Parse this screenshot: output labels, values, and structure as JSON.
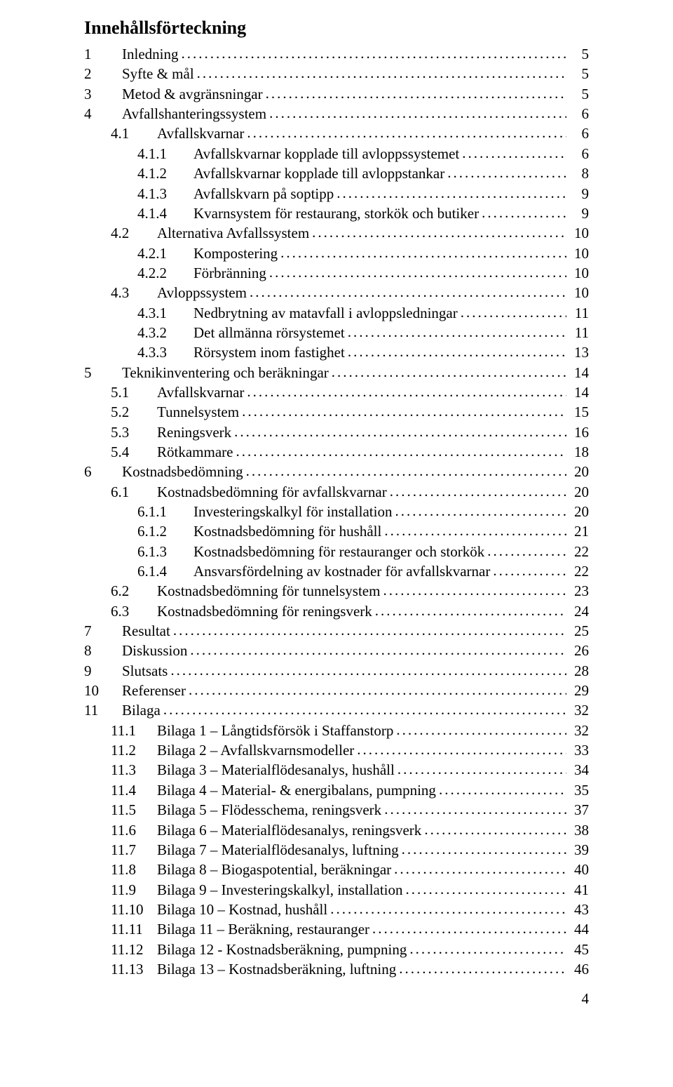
{
  "text_color": "#000000",
  "background_color": "#ffffff",
  "font_family": "Times New Roman",
  "title": "Innehållsförteckning",
  "page_number": "4",
  "entries": [
    {
      "level": 0,
      "num": "1",
      "label": "Inledning",
      "page": "5"
    },
    {
      "level": 0,
      "num": "2",
      "label": "Syfte & mål",
      "page": "5"
    },
    {
      "level": 0,
      "num": "3",
      "label": "Metod & avgränsningar",
      "page": "5"
    },
    {
      "level": 0,
      "num": "4",
      "label": "Avfallshanteringssystem",
      "page": "6"
    },
    {
      "level": 1,
      "num": "4.1",
      "label": "Avfallskvarnar",
      "page": "6"
    },
    {
      "level": 2,
      "num": "4.1.1",
      "label": "Avfallskvarnar kopplade till avloppssystemet",
      "page": "6"
    },
    {
      "level": 2,
      "num": "4.1.2",
      "label": "Avfallskvarnar kopplade till avloppstankar",
      "page": "8"
    },
    {
      "level": 2,
      "num": "4.1.3",
      "label": "Avfallskvarn på soptipp",
      "page": "9"
    },
    {
      "level": 2,
      "num": "4.1.4",
      "label": "Kvarnsystem för restaurang, storkök och butiker",
      "page": "9"
    },
    {
      "level": 1,
      "num": "4.2",
      "label": "Alternativa Avfallssystem",
      "page": "10"
    },
    {
      "level": 2,
      "num": "4.2.1",
      "label": "Kompostering",
      "page": "10"
    },
    {
      "level": 2,
      "num": "4.2.2",
      "label": "Förbränning",
      "page": "10"
    },
    {
      "level": 1,
      "num": "4.3",
      "label": "Avloppssystem",
      "page": "10"
    },
    {
      "level": 2,
      "num": "4.3.1",
      "label": "Nedbrytning av matavfall i avloppsledningar",
      "page": "11"
    },
    {
      "level": 2,
      "num": "4.3.2",
      "label": "Det allmänna rörsystemet",
      "page": "11"
    },
    {
      "level": 2,
      "num": "4.3.3",
      "label": "Rörsystem inom fastighet",
      "page": "13"
    },
    {
      "level": 0,
      "num": "5",
      "label": "Teknikinventering och beräkningar",
      "page": "14"
    },
    {
      "level": 1,
      "num": "5.1",
      "label": "Avfallskvarnar",
      "page": "14"
    },
    {
      "level": 1,
      "num": "5.2",
      "label": "Tunnelsystem",
      "page": "15"
    },
    {
      "level": 1,
      "num": "5.3",
      "label": "Reningsverk",
      "page": "16"
    },
    {
      "level": 1,
      "num": "5.4",
      "label": "Rötkammare",
      "page": "18"
    },
    {
      "level": 0,
      "num": "6",
      "label": "Kostnadsbedömning",
      "page": "20"
    },
    {
      "level": 1,
      "num": "6.1",
      "label": "Kostnadsbedömning för avfallskvarnar",
      "page": "20"
    },
    {
      "level": 2,
      "num": "6.1.1",
      "label": "Investeringskalkyl för installation",
      "page": "20"
    },
    {
      "level": 2,
      "num": "6.1.2",
      "label": "Kostnadsbedömning för hushåll",
      "page": "21"
    },
    {
      "level": 2,
      "num": "6.1.3",
      "label": "Kostnadsbedömning för restauranger och storkök",
      "page": "22"
    },
    {
      "level": 2,
      "num": "6.1.4",
      "label": "Ansvarsfördelning av kostnader för avfallskvarnar",
      "page": "22"
    },
    {
      "level": 1,
      "num": "6.2",
      "label": "Kostnadsbedömning för tunnelsystem",
      "page": "23"
    },
    {
      "level": 1,
      "num": "6.3",
      "label": "Kostnadsbedömning för reningsverk",
      "page": "24"
    },
    {
      "level": 0,
      "num": "7",
      "label": "Resultat",
      "page": "25"
    },
    {
      "level": 0,
      "num": "8",
      "label": "Diskussion",
      "page": "26"
    },
    {
      "level": 0,
      "num": "9",
      "label": "Slutsats",
      "page": "28"
    },
    {
      "level": 0,
      "num": "10",
      "label": "Referenser",
      "page": "29"
    },
    {
      "level": 0,
      "num": "11",
      "label": "Bilaga",
      "page": "32"
    },
    {
      "level": 1,
      "num": "11.1",
      "label": "Bilaga 1 – Långtidsförsök i Staffanstorp",
      "page": "32"
    },
    {
      "level": 1,
      "num": "11.2",
      "label": "Bilaga 2 – Avfallskvarnsmodeller",
      "page": "33"
    },
    {
      "level": 1,
      "num": "11.3",
      "label": "Bilaga 3 – Materialflödesanalys, hushåll",
      "page": "34"
    },
    {
      "level": 1,
      "num": "11.4",
      "label": "Bilaga 4 – Material- & energibalans, pumpning",
      "page": "35"
    },
    {
      "level": 1,
      "num": "11.5",
      "label": "Bilaga 5 – Flödesschema, reningsverk",
      "page": "37"
    },
    {
      "level": 1,
      "num": "11.6",
      "label": "Bilaga 6 – Materialflödesanalys, reningsverk",
      "page": "38"
    },
    {
      "level": 1,
      "num": "11.7",
      "label": "Bilaga 7 – Materialflödesanalys, luftning",
      "page": "39"
    },
    {
      "level": 1,
      "num": "11.8",
      "label": "Bilaga 8 – Biogaspotential, beräkningar",
      "page": "40"
    },
    {
      "level": 1,
      "num": "11.9",
      "label": "Bilaga 9 – Investeringskalkyl, installation",
      "page": "41"
    },
    {
      "level": 1,
      "num": "11.10",
      "label": "Bilaga 10 – Kostnad, hushåll",
      "page": "43"
    },
    {
      "level": 1,
      "num": "11.11",
      "label": "Bilaga 11 – Beräkning, restauranger",
      "page": "44"
    },
    {
      "level": 1,
      "num": "11.12",
      "label": "Bilaga 12 - Kostnadsberäkning, pumpning",
      "page": "45"
    },
    {
      "level": 1,
      "num": "11.13",
      "label": "Bilaga 13 – Kostnadsberäkning, luftning",
      "page": "46"
    }
  ]
}
